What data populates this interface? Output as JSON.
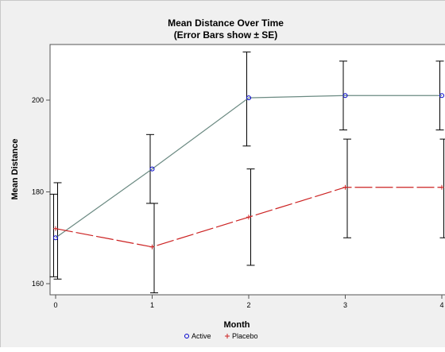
{
  "chart_data": {
    "type": "line",
    "title": "Mean Distance Over Time",
    "subtitle": "(Error Bars show ± SE)",
    "xlabel": "Month",
    "ylabel": "Mean Distance",
    "x": [
      0,
      1,
      2,
      3,
      4
    ],
    "xlim": [
      0,
      4
    ],
    "ylim": [
      157,
      213
    ],
    "x_ticks": [
      0,
      1,
      2,
      3,
      4
    ],
    "y_ticks": [
      160,
      180,
      200
    ],
    "grid": false,
    "legend_position": "bottom-center",
    "series": [
      {
        "name": "Active",
        "marker": "circle",
        "line_style": "solid",
        "color": "#6b8a82",
        "marker_color": "#0000cc",
        "values": [
          170.0,
          185.0,
          200.5,
          201.0,
          201.0
        ],
        "se_low": [
          161.5,
          177.5,
          190.0,
          193.5,
          193.5
        ],
        "se_high": [
          179.5,
          192.5,
          210.5,
          208.5,
          208.5
        ]
      },
      {
        "name": "Placebo",
        "marker": "plus",
        "line_style": "dashed",
        "color": "#cc2222",
        "marker_color": "#cc2222",
        "values": [
          172.0,
          168.0,
          174.5,
          181.0,
          181.0
        ],
        "se_low": [
          161.0,
          158.0,
          164.0,
          170.0,
          170.0
        ],
        "se_high": [
          182.0,
          177.5,
          185.0,
          191.5,
          191.5
        ]
      }
    ]
  }
}
